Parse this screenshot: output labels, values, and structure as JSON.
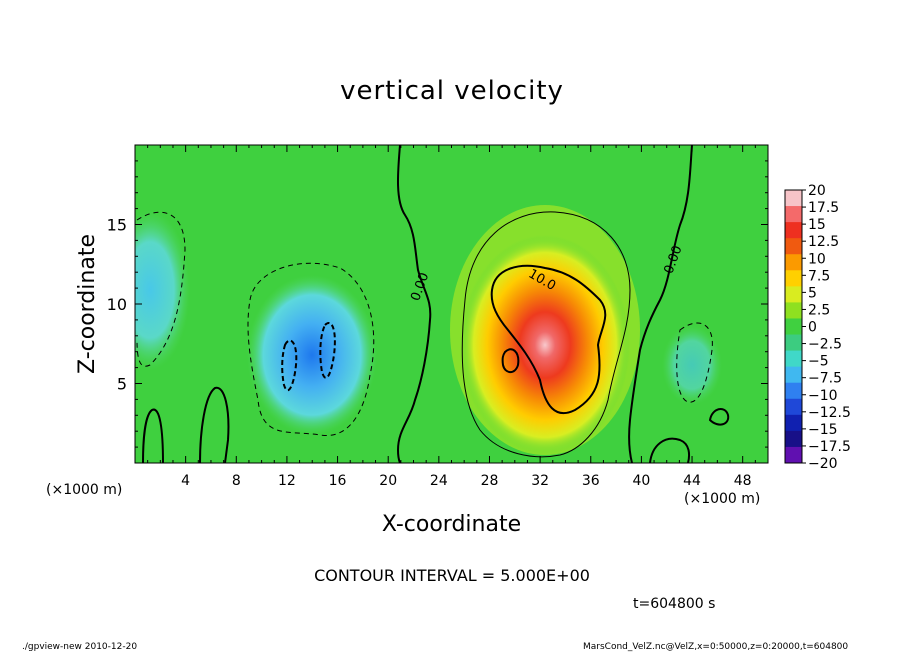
{
  "chart_data": {
    "type": "heatmap",
    "title": "vertical velocity",
    "xlabel": "X-coordinate",
    "ylabel": "Z-coordinate",
    "x_unit_label": "(×1000 m)",
    "y_unit_label": "(×1000 m)",
    "xlim": [
      0,
      50
    ],
    "ylim": [
      0,
      20
    ],
    "x_ticks": [
      4,
      8,
      12,
      16,
      20,
      24,
      28,
      32,
      36,
      40,
      44,
      48
    ],
    "y_ticks": [
      5,
      10,
      15
    ],
    "contour_interval": "CONTOUR INTERVAL = 5.000E+00",
    "contour_labels": [
      {
        "x": 22.8,
        "y": 11.0,
        "text": "0.00"
      },
      {
        "x": 32.0,
        "y": 11.3,
        "text": "10.0"
      },
      {
        "x": 42.8,
        "y": 12.7,
        "text": "0.00"
      }
    ],
    "colorbar": {
      "labels": [
        "20",
        "17.5",
        "15",
        "12.5",
        "10",
        "7.5",
        "5",
        "2.5",
        "0",
        "−2.5",
        "−5",
        "−7.5",
        "−10",
        "−12.5",
        "−15",
        "−17.5",
        "−20"
      ],
      "colors": [
        "#f7c4c8",
        "#f46a6a",
        "#ee3020",
        "#f05a10",
        "#fb9a00",
        "#ffd000",
        "#d9ec20",
        "#8fe020",
        "#40d040",
        "#3ccc80",
        "#40d8c8",
        "#40b8f0",
        "#2f80f0",
        "#1f48d8",
        "#1020b0",
        "#181088",
        "#6010b0"
      ],
      "range": [
        -20,
        20
      ]
    },
    "features": [
      {
        "name": "updraft",
        "x": 32.5,
        "y": 7.5,
        "peak": 19
      },
      {
        "name": "downdraft-left",
        "x": 14,
        "y": 7,
        "peak": -9
      },
      {
        "name": "downdraft-edge",
        "x": 1,
        "y": 11,
        "peak": -6
      },
      {
        "name": "downdraft-right",
        "x": 44,
        "y": 6.5,
        "peak": -3
      }
    ],
    "time_label": "t=604800 s",
    "footer_left": "./gpview-new   2010-12-20",
    "footer_right": "MarsCond_VelZ.nc@VelZ,x=0:50000,z=0:20000,t=604800"
  }
}
